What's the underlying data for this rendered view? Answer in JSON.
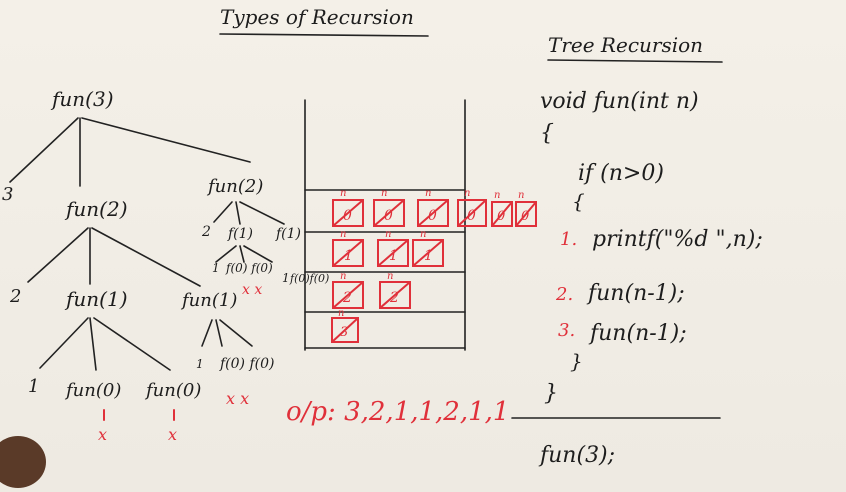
{
  "title": "Types of Recursion",
  "subtitle": "Tree Recursion",
  "code": {
    "signature": "void fun(int n)",
    "open_brace": "{",
    "if_line": "if (n>0)",
    "inner_open": "{",
    "step1_num": "1.",
    "step1": "printf(\"%d \",n);",
    "step2_num": "2.",
    "step2": "fun(n-1);",
    "step3_num": "3.",
    "step3": "fun(n-1);",
    "inner_close": "}",
    "close_brace": "}",
    "call": "fun(3);"
  },
  "tree": {
    "root": "fun(3)",
    "l1_print": "3",
    "l1_left": "fun(2)",
    "l1_right": "fun(2)",
    "l2_print": "2",
    "l2_left": "fun(1)",
    "l2_right": "fun(1)",
    "l3_print": "1",
    "l3_left": "fun(0)",
    "l3_right": "fun(0)",
    "r_print": "2",
    "r_f1a": "f(1)",
    "r_f1b": "f(1)",
    "r_one_a": "1",
    "r_f0_pair": "f(0) f(0)",
    "r_one_b": "1",
    "r_f0_pair2": "f(0)f(0)",
    "mid_one": "1",
    "mid_f0_pair": "f(0) f(0)"
  },
  "output": "o/p: 3,2,1,1,2,1,1",
  "stack": {
    "row1": [
      "0",
      "0",
      "0",
      "0",
      "0",
      "0"
    ],
    "row2": [
      "1",
      "1",
      "1"
    ],
    "row3": [
      "2",
      "2"
    ],
    "row4": [
      "3"
    ],
    "label": "n"
  }
}
